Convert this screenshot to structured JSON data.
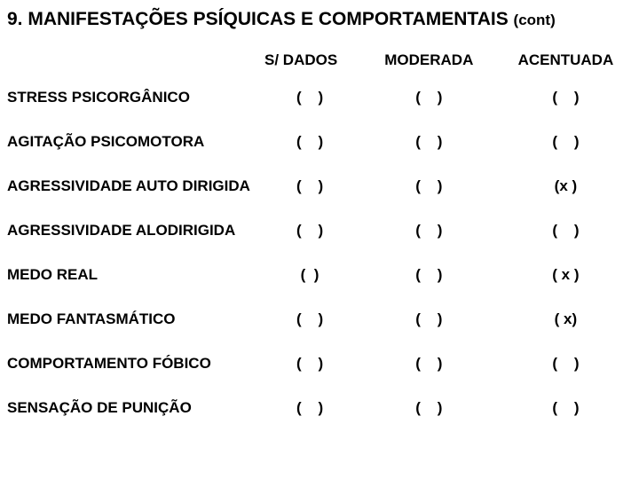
{
  "title_main": "9. MANIFESTAÇÕES PSÍQUICAS E COMPORTAMENTAIS ",
  "title_cont": "(cont)",
  "columns": {
    "c1": "S/ DADOS",
    "c2": "MODERADA",
    "c3": "ACENTUADA"
  },
  "rows": [
    {
      "label": "STRESS PSICORGÂNICO",
      "c1": "(    )",
      "c2": "(    )",
      "c3": "(    )"
    },
    {
      "label": "AGITAÇÃO PSICOMOTORA",
      "c1": "(    )",
      "c2": "(    )",
      "c3": "(    )"
    },
    {
      "label": "AGRESSIVIDADE AUTO DIRIGIDA",
      "c1": "(    )",
      "c2": "(    )",
      "c3": "(x )"
    },
    {
      "label": "AGRESSIVIDADE ALODIRIGIDA",
      "c1": "(    )",
      "c2": "(    )",
      "c3": "(    )"
    },
    {
      "label": "MEDO REAL",
      "c1": "(  )",
      "c2": "(    )",
      "c3": "( x )"
    },
    {
      "label": "MEDO FANTASMÁTICO",
      "c1": "(    )",
      "c2": "(    )",
      "c3": "( x)"
    },
    {
      "label": "COMPORTAMENTO FÓBICO",
      "c1": "(    )",
      "c2": "(    )",
      "c3": "(    )"
    },
    {
      "label": "SENSAÇÃO DE PUNIÇÃO",
      "c1": "(    )",
      "c2": "(    )",
      "c3": "(    )"
    }
  ],
  "style": {
    "background_color": "#ffffff",
    "text_color": "#000000",
    "title_fontsize_pt": 16,
    "cont_fontsize_pt": 13,
    "body_fontsize_pt": 13,
    "font_family": "Arial"
  }
}
